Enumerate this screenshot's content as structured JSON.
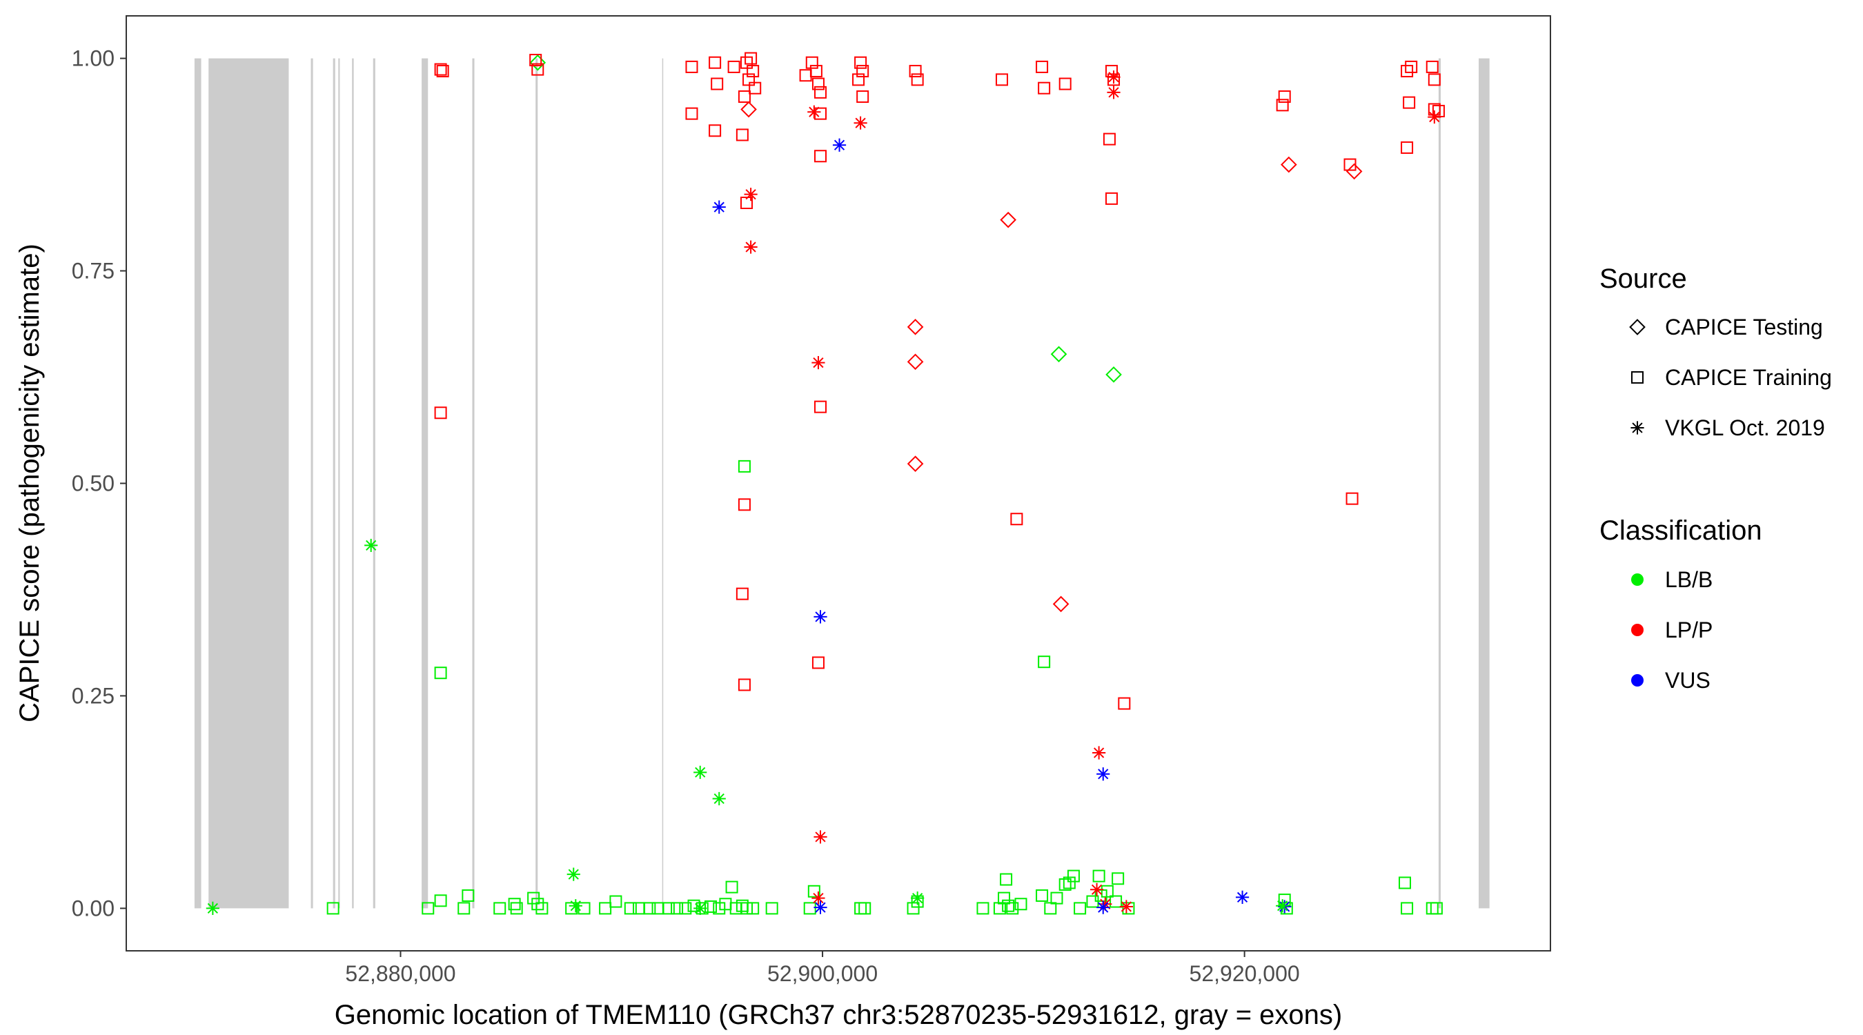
{
  "chart_data": {
    "type": "scatter",
    "xlabel": "Genomic location of TMEM110 (GRCh37 chr3:52870235-52931612, gray = exons)",
    "ylabel": "CAPICE score (pathogenicity estimate)",
    "xlim": [
      52867000,
      52934500
    ],
    "ylim": [
      -0.05,
      1.05
    ],
    "x_ticks": [
      52880000,
      52900000,
      52920000
    ],
    "x_tick_labels": [
      "52,880,000",
      "52,900,000",
      "52,920,000"
    ],
    "y_ticks": [
      0,
      0.25,
      0.5,
      0.75,
      1
    ],
    "y_tick_labels": [
      "0.00",
      "0.25",
      "0.50",
      "0.75",
      "1.00"
    ],
    "grid": false,
    "legend_position": "right",
    "exon_color": "#cccccc",
    "exons": [
      [
        52870235,
        52870550
      ],
      [
        52870900,
        52874700
      ],
      [
        52875750,
        52875850
      ],
      [
        52876800,
        52876900
      ],
      [
        52877050,
        52877120
      ],
      [
        52877700,
        52877780
      ],
      [
        52878700,
        52878800
      ],
      [
        52881000,
        52881300
      ],
      [
        52883400,
        52883500
      ],
      [
        52886400,
        52886500
      ],
      [
        52892400,
        52892450
      ],
      [
        52929200,
        52929300
      ],
      [
        52931100,
        52931612
      ]
    ],
    "legend": {
      "source": {
        "title": "Source",
        "items": [
          {
            "label": "CAPICE Testing",
            "shape": "diamond"
          },
          {
            "label": "CAPICE Training",
            "shape": "square"
          },
          {
            "label": "VKGL Oct. 2019",
            "shape": "asterisk"
          }
        ]
      },
      "classification": {
        "title": "Classification",
        "items": [
          {
            "label": "LB/B",
            "color": "#00ee00"
          },
          {
            "label": "LP/P",
            "color": "#ff0000"
          },
          {
            "label": "VUS",
            "color": "#0000ff"
          }
        ]
      }
    },
    "series": [
      {
        "source": "CAPICE Testing",
        "classification": "LP/P",
        "points": [
          [
            52896500,
            0.94
          ],
          [
            52904400,
            0.684
          ],
          [
            52904400,
            0.643
          ],
          [
            52904400,
            0.523
          ],
          [
            52908800,
            0.81
          ],
          [
            52911300,
            0.358
          ],
          [
            52922100,
            0.875
          ],
          [
            52925200,
            0.867
          ]
        ]
      },
      {
        "source": "CAPICE Testing",
        "classification": "LB/B",
        "points": [
          [
            52886500,
            0.995
          ],
          [
            52911200,
            0.652
          ],
          [
            52913800,
            0.628
          ]
        ]
      },
      {
        "source": "CAPICE Training",
        "classification": "LP/P",
        "points": [
          [
            52881900,
            0.987
          ],
          [
            52882000,
            0.985
          ],
          [
            52886400,
            0.998
          ],
          [
            52886500,
            0.987
          ],
          [
            52893800,
            0.99
          ],
          [
            52894900,
            0.995
          ],
          [
            52895800,
            0.99
          ],
          [
            52896400,
            0.995
          ],
          [
            52896600,
            1.0
          ],
          [
            52896700,
            0.985
          ],
          [
            52896500,
            0.975
          ],
          [
            52896800,
            0.965
          ],
          [
            52895000,
            0.97
          ],
          [
            52896300,
            0.955
          ],
          [
            52893800,
            0.935
          ],
          [
            52894900,
            0.915
          ],
          [
            52896200,
            0.91
          ],
          [
            52896400,
            0.83
          ],
          [
            52899500,
            0.995
          ],
          [
            52899700,
            0.985
          ],
          [
            52899200,
            0.98
          ],
          [
            52899800,
            0.97
          ],
          [
            52899900,
            0.96
          ],
          [
            52899900,
            0.935
          ],
          [
            52899900,
            0.885
          ],
          [
            52901800,
            0.995
          ],
          [
            52901900,
            0.985
          ],
          [
            52901700,
            0.975
          ],
          [
            52901900,
            0.955
          ],
          [
            52904400,
            0.985
          ],
          [
            52904500,
            0.975
          ],
          [
            52908500,
            0.975
          ],
          [
            52910400,
            0.99
          ],
          [
            52910500,
            0.965
          ],
          [
            52911500,
            0.97
          ],
          [
            52913700,
            0.985
          ],
          [
            52913800,
            0.975
          ],
          [
            52913600,
            0.905
          ],
          [
            52913700,
            0.835
          ],
          [
            52921900,
            0.955
          ],
          [
            52921800,
            0.945
          ],
          [
            52925000,
            0.875
          ],
          [
            52927900,
            0.99
          ],
          [
            52927700,
            0.985
          ],
          [
            52927800,
            0.948
          ],
          [
            52927700,
            0.895
          ],
          [
            52928900,
            0.99
          ],
          [
            52929000,
            0.975
          ],
          [
            52929000,
            0.94
          ],
          [
            52929200,
            0.938
          ],
          [
            52881900,
            0.583
          ],
          [
            52896300,
            0.475
          ],
          [
            52896200,
            0.37
          ],
          [
            52896300,
            0.263
          ],
          [
            52899900,
            0.59
          ],
          [
            52899800,
            0.289
          ],
          [
            52909200,
            0.458
          ],
          [
            52925100,
            0.482
          ],
          [
            52914300,
            0.241
          ]
        ]
      },
      {
        "source": "CAPICE Training",
        "classification": "LB/B",
        "points": [
          [
            52896300,
            0.52
          ],
          [
            52881900,
            0.277
          ],
          [
            52910500,
            0.29
          ],
          [
            52876800,
            0
          ],
          [
            52881300,
            0
          ],
          [
            52881900,
            0.009
          ],
          [
            52883200,
            0.015
          ],
          [
            52883000,
            0
          ],
          [
            52884700,
            0
          ],
          [
            52885400,
            0.005
          ],
          [
            52885500,
            0
          ],
          [
            52886300,
            0.012
          ],
          [
            52886500,
            0.005
          ],
          [
            52886700,
            0
          ],
          [
            52888100,
            0
          ],
          [
            52888700,
            0
          ],
          [
            52889700,
            0
          ],
          [
            52890200,
            0.008
          ],
          [
            52890900,
            0
          ],
          [
            52891300,
            0
          ],
          [
            52891800,
            0
          ],
          [
            52892200,
            0
          ],
          [
            52892700,
            0
          ],
          [
            52893100,
            0
          ],
          [
            52893500,
            0
          ],
          [
            52893900,
            0.003
          ],
          [
            52894300,
            0
          ],
          [
            52894700,
            0.002
          ],
          [
            52895100,
            0
          ],
          [
            52895400,
            0.005
          ],
          [
            52895700,
            0.025
          ],
          [
            52895900,
            0
          ],
          [
            52896200,
            0.003
          ],
          [
            52896400,
            0
          ],
          [
            52896700,
            0
          ],
          [
            52897600,
            0
          ],
          [
            52899400,
            0
          ],
          [
            52899600,
            0.02
          ],
          [
            52901800,
            0
          ],
          [
            52902000,
            0
          ],
          [
            52904300,
            0
          ],
          [
            52904500,
            0.008
          ],
          [
            52907600,
            0
          ],
          [
            52908400,
            0
          ],
          [
            52908600,
            0.012
          ],
          [
            52908700,
            0.034
          ],
          [
            52908800,
            0.003
          ],
          [
            52909000,
            0
          ],
          [
            52909400,
            0.005
          ],
          [
            52910400,
            0.015
          ],
          [
            52910800,
            0
          ],
          [
            52911100,
            0.012
          ],
          [
            52911500,
            0.028
          ],
          [
            52911700,
            0.03
          ],
          [
            52911900,
            0.038
          ],
          [
            52912200,
            0
          ],
          [
            52912800,
            0.008
          ],
          [
            52913100,
            0.038
          ],
          [
            52913200,
            0.015
          ],
          [
            52913500,
            0.02
          ],
          [
            52913900,
            0.008
          ],
          [
            52914000,
            0.035
          ],
          [
            52914500,
            0
          ],
          [
            52921900,
            0.01
          ],
          [
            52922000,
            0
          ],
          [
            52927600,
            0.03
          ],
          [
            52927700,
            0
          ],
          [
            52928900,
            0
          ],
          [
            52929100,
            0
          ]
        ]
      },
      {
        "source": "VKGL Oct. 2019",
        "classification": "LP/P",
        "points": [
          [
            52896600,
            0.84
          ],
          [
            52896600,
            0.778
          ],
          [
            52899600,
            0.937
          ],
          [
            52901800,
            0.924
          ],
          [
            52899800,
            0.642
          ],
          [
            52899900,
            0.084
          ],
          [
            52899800,
            0.012
          ],
          [
            52913100,
            0.183
          ],
          [
            52913000,
            0.022
          ],
          [
            52913400,
            0.005
          ],
          [
            52914400,
            0.002
          ],
          [
            52913800,
            0.96
          ],
          [
            52913800,
            0.978
          ],
          [
            52929000,
            0.931
          ]
        ]
      },
      {
        "source": "VKGL Oct. 2019",
        "classification": "VUS",
        "points": [
          [
            52895100,
            0.825
          ],
          [
            52900800,
            0.898
          ],
          [
            52899900,
            0.343
          ],
          [
            52913300,
            0.158
          ],
          [
            52899900,
            0.001
          ],
          [
            52913300,
            0.001
          ],
          [
            52919900,
            0.013
          ],
          [
            52921900,
            0.002
          ]
        ]
      },
      {
        "source": "VKGL Oct. 2019",
        "classification": "LB/B",
        "points": [
          [
            52871100,
            0
          ],
          [
            52878600,
            0.427
          ],
          [
            52894200,
            0.16
          ],
          [
            52895100,
            0.129
          ],
          [
            52888200,
            0.04
          ],
          [
            52888300,
            0.003
          ],
          [
            52894200,
            0
          ],
          [
            52904500,
            0.012
          ],
          [
            52921800,
            0.003
          ]
        ]
      }
    ]
  }
}
